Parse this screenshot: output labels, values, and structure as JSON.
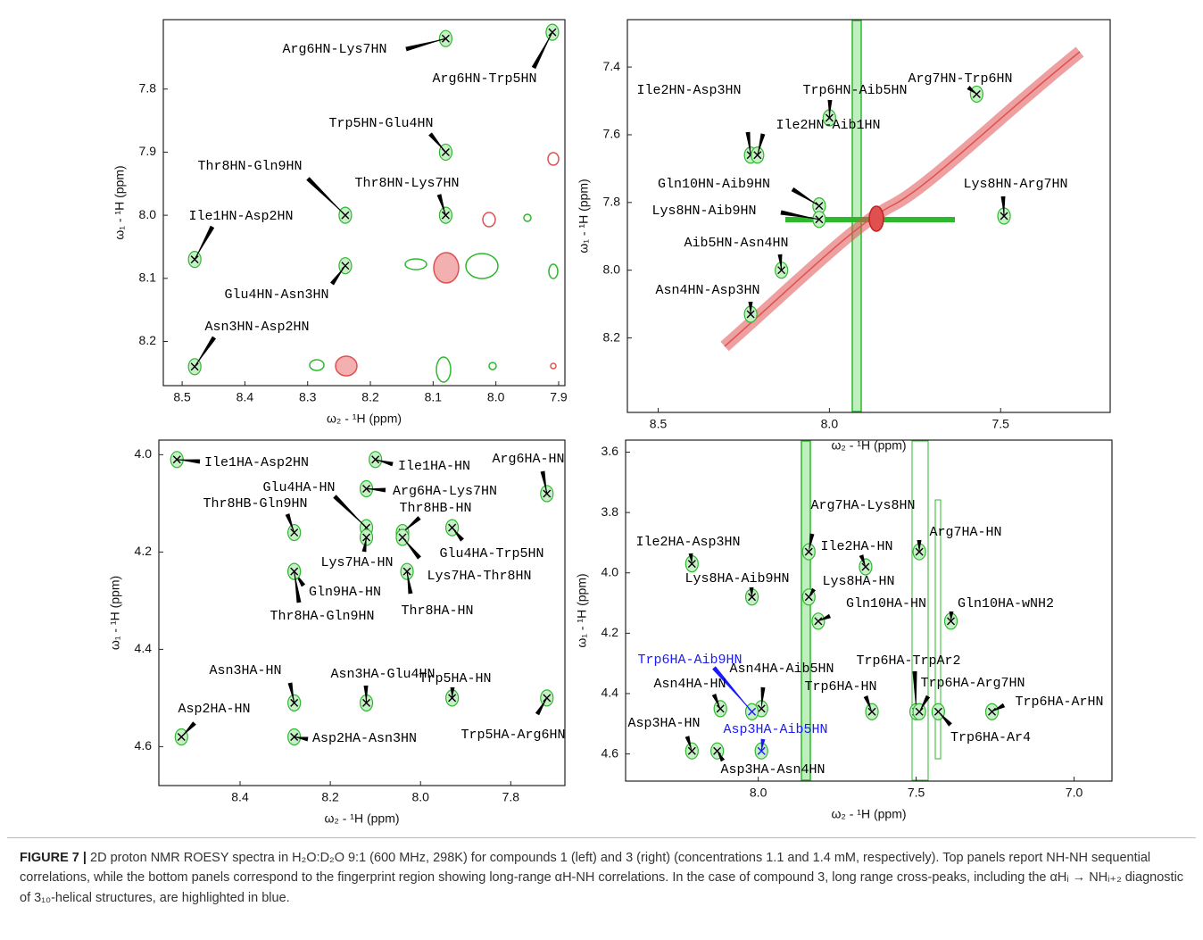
{
  "chart_data": [
    {
      "type": "scatter",
      "x_label": "ω₂ - ¹H (ppm)",
      "y_label": "ω₁ - ¹H (ppm)",
      "color": "#2db82d",
      "xlim": [
        8.53,
        7.89
      ],
      "ylim": [
        8.27,
        7.69
      ],
      "xticks": [
        8.5,
        8.4,
        8.3,
        8.2,
        8.1,
        {
          "value": 8.0,
          "label": "8.0"
        },
        7.9
      ],
      "yticks": [
        7.8,
        7.9,
        {
          "value": 8.0,
          "label": "8.0"
        },
        8.1,
        8.2
      ],
      "labels": [
        "Arg6HN-Lys7HN",
        "Arg6HN-Trp5HN",
        "Trp5HN-Glu4HN",
        "Thr8HN-Gln9HN",
        "Thr8HN-Lys7HN",
        "Ile1HN-Asp2HN",
        "Glu4HN-Asn3HN",
        "Asn3HN-Asp2HN"
      ],
      "x": [
        8.08,
        7.91,
        8.08,
        8.24,
        8.08,
        8.48,
        8.24,
        8.48
      ],
      "values": [
        7.72,
        7.71,
        7.9,
        8.0,
        8.0,
        8.07,
        8.08,
        8.24
      ]
    },
    {
      "type": "scatter",
      "x_label": "ω₂ - ¹H (ppm)",
      "y_label": "ω₁ - ¹H (ppm)",
      "color": "#2db82d",
      "xlim": [
        8.59,
        7.18
      ],
      "ylim": [
        8.42,
        7.26
      ],
      "xticks": [
        8.5,
        {
          "value": 8.0,
          "label": "8.0"
        },
        7.5
      ],
      "yticks": [
        7.4,
        7.6,
        7.8,
        {
          "value": 8.0,
          "label": "8.0"
        },
        8.2
      ],
      "labels": [
        "Arg7HN-Trp6HN",
        "Trp6HN-Aib5HN",
        "Ile2HN-Asp3HN",
        "Ile2HN-Aib1HN",
        "Gln10HN-Aib9HN",
        "Lys8HN-Aib9HN",
        "Lys8HN-Arg7HN",
        "Aib5HN-Asn4HN",
        "Asn4HN-Asp3HN"
      ],
      "x": [
        7.57,
        8.0,
        8.23,
        8.21,
        8.03,
        8.03,
        7.49,
        8.14,
        8.23
      ],
      "values": [
        7.48,
        7.55,
        7.66,
        7.66,
        7.81,
        7.85,
        7.84,
        8.0,
        8.13
      ]
    },
    {
      "type": "scatter",
      "x_label": "ω₂ - ¹H (ppm)",
      "y_label": "ω₁ - ¹H (ppm)",
      "color": "#2db82d",
      "xlim": [
        8.58,
        7.68
      ],
      "ylim": [
        4.68,
        3.97
      ],
      "xticks": [
        8.4,
        8.2,
        {
          "value": 8.0,
          "label": "8.0"
        },
        7.8
      ],
      "yticks": [
        {
          "value": 4.0,
          "label": "4.0"
        },
        4.2,
        4.4,
        4.6
      ],
      "labels": [
        "Ile1HA-Asp2HN",
        "Ile1HA-HN",
        "Arg6HA-HN",
        "Arg6HA-Lys7HN",
        "Thr8HB-Gln9HN",
        "Glu4HA-HN",
        "Lys7HA-HN",
        "Thr8HB-HN",
        "Lys7HA-Thr8HN",
        "Glu4HA-Trp5HN",
        "Gln9HA-HN",
        "Thr8HA-Gln9HN",
        "Thr8HA-HN",
        "Asn3HA-HN",
        "Asn3HA-Glu4HN",
        "Trp5HA-HN",
        "Trp5HA-Arg6HN",
        "Asp2HA-HN",
        "Asp2HA-Asn3HN"
      ],
      "x": [
        8.54,
        8.1,
        7.72,
        8.12,
        8.28,
        8.12,
        8.12,
        8.04,
        8.04,
        7.93,
        8.28,
        8.28,
        8.03,
        8.28,
        8.12,
        7.93,
        7.72,
        8.53,
        8.28
      ],
      "values": [
        4.01,
        4.01,
        4.08,
        4.07,
        4.16,
        4.15,
        4.17,
        4.16,
        4.17,
        4.15,
        4.24,
        4.24,
        4.24,
        4.51,
        4.51,
        4.5,
        4.5,
        4.58,
        4.58
      ]
    },
    {
      "type": "scatter",
      "x_label": "ω₂ - ¹H (ppm)",
      "y_label": "ω₁ - ¹H (ppm)",
      "color": "#2db82d",
      "xlim": [
        8.42,
        6.88
      ],
      "ylim": [
        4.69,
        3.56
      ],
      "xticks": [
        {
          "value": 8.0,
          "label": "8.0"
        },
        7.5,
        {
          "value": 7.0,
          "label": "7.0"
        }
      ],
      "yticks": [
        3.6,
        3.8,
        {
          "value": 4.0,
          "label": "4.0"
        },
        4.2,
        4.4,
        4.6
      ],
      "labels": [
        "Arg7HA-Lys8HN",
        "Ile2HA-Asp3HN",
        "Ile2HA-HN",
        "Arg7HA-HN",
        "Lys8HA-Aib9HN",
        "Lys8HA-HN",
        "Gln10HA-HN",
        "Gln10HA-wNH2",
        "Asn4HA-Aib5HN",
        "Trp6HA-Aib9HN",
        "Asp3HA-Aib5HN",
        "Asn4HA-HN",
        "Trp6HA-HN",
        "Trp6HA-TrpAr2",
        "Trp6HA-Arg7HN",
        "Trp6HA-Ar4",
        "Trp6HA-ArHN",
        "Asp3HA-HN",
        "Asp3HA-Asn4HN"
      ],
      "label_colors": [
        "#000000",
        "#000000",
        "#000000",
        "#000000",
        "#000000",
        "#000000",
        "#000000",
        "#000000",
        "#000000",
        "#1a1aff",
        "#1a1aff",
        "#000000",
        "#000000",
        "#000000",
        "#000000",
        "#000000",
        "#000000",
        "#000000",
        "#000000"
      ],
      "x": [
        7.84,
        8.21,
        7.66,
        7.49,
        8.02,
        7.84,
        7.81,
        7.39,
        7.99,
        8.02,
        7.99,
        8.12,
        7.64,
        7.5,
        7.49,
        7.43,
        7.26,
        8.21,
        8.13
      ],
      "values": [
        3.93,
        3.97,
        3.98,
        3.93,
        4.08,
        4.08,
        4.16,
        4.16,
        4.45,
        4.46,
        4.59,
        4.45,
        4.46,
        4.46,
        4.46,
        4.46,
        4.46,
        4.59,
        4.59
      ]
    }
  ],
  "caption": {
    "label": "FIGURE 7 |",
    "text": "2D proton NMR ROESY spectra in H₂O:D₂O 9:1 (600 MHz, 298K) for compounds 1 (left) and 3 (right) (concentrations 1.1 and 1.4 mM, respectively). Top panels report NH-NH sequential correlations, while the bottom panels correspond to the fingerprint region showing long-range αH-NH correlations. In the case of compound 3, long range cross-peaks, including the αHᵢ → NHᵢ₊₂ diagnostic of 3₁₀-helical structures, are highlighted in blue."
  }
}
